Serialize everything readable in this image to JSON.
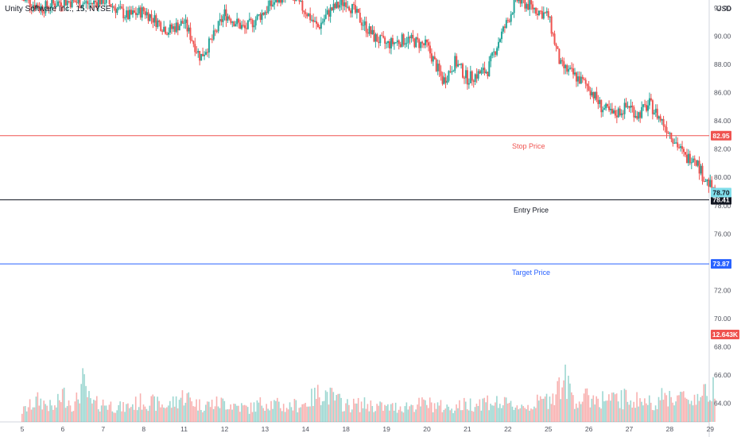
{
  "header": {
    "title": "Unity Software Inc., 15, NYSE",
    "currency": "USD"
  },
  "colors": {
    "up": "#26a69a",
    "down": "#ef5350",
    "stop": "#ef5350",
    "entry": "#131722",
    "target": "#2962ff",
    "last": "#80deea",
    "volume_tag": "#ef5350"
  },
  "chart_data": {
    "type": "candlestick",
    "y_axis": {
      "ticks": [
        92,
        90,
        88,
        86,
        84,
        82,
        80,
        78,
        76,
        74,
        72,
        70,
        68,
        66,
        64
      ],
      "tick_labels": [
        "92.00",
        "90.00",
        "88.00",
        "86.00",
        "84.00",
        "82.00",
        "80.00",
        "78.00",
        "76.00",
        "74.00",
        "72.00",
        "70.00",
        "68.00",
        "66.00",
        "64.00"
      ],
      "range": [
        62.8,
        93.3
      ]
    },
    "x_axis": {
      "labels": [
        "5",
        "6",
        "7",
        "8",
        "11",
        "12",
        "13",
        "14",
        "18",
        "19",
        "20",
        "21",
        "22",
        "25",
        "26",
        "27",
        "28",
        "29"
      ]
    },
    "levels": [
      {
        "name": "stop",
        "price": 82.95,
        "tag": "82.95",
        "label": "Stop Price"
      },
      {
        "name": "entry",
        "price": 78.41,
        "tag": "78.41",
        "label": "Entry Price"
      },
      {
        "name": "target",
        "price": 73.87,
        "tag": "73.87",
        "label": "Target Price"
      }
    ],
    "last_price": {
      "price": 78.7,
      "tag": "78.70"
    },
    "volume_tag": {
      "text": "12.643K"
    },
    "price_path": [
      [
        0,
        92.6
      ],
      [
        0.5,
        92.0
      ],
      [
        1,
        92.5
      ],
      [
        1.7,
        92.3
      ],
      [
        2,
        92.6
      ],
      [
        2.6,
        91.4
      ],
      [
        3,
        91.8
      ],
      [
        3.6,
        90.4
      ],
      [
        4,
        91.0
      ],
      [
        4.4,
        88.5
      ],
      [
        4.7,
        89.8
      ],
      [
        5,
        91.6
      ],
      [
        5.5,
        90.5
      ],
      [
        6,
        91.8
      ],
      [
        6.5,
        93.1
      ],
      [
        7,
        91.8
      ],
      [
        7.3,
        90.6
      ],
      [
        7.6,
        91.8
      ],
      [
        8,
        92.5
      ],
      [
        8.4,
        91.0
      ],
      [
        8.7,
        89.9
      ],
      [
        9,
        89.4
      ],
      [
        9.5,
        89.8
      ],
      [
        10,
        89.3
      ],
      [
        10.4,
        86.8
      ],
      [
        10.7,
        88.2
      ],
      [
        11,
        87.0
      ],
      [
        11.5,
        87.6
      ],
      [
        11.8,
        89.9
      ],
      [
        12,
        91.1
      ],
      [
        12.2,
        92.6
      ],
      [
        12.5,
        92.2
      ],
      [
        13,
        91.4
      ],
      [
        13.3,
        87.9
      ],
      [
        13.6,
        87.3
      ],
      [
        14,
        86.4
      ],
      [
        14.3,
        85.0
      ],
      [
        14.6,
        84.4
      ],
      [
        15,
        85.1
      ],
      [
        15.2,
        84.4
      ],
      [
        15.5,
        85.2
      ],
      [
        16,
        83.2
      ],
      [
        16.4,
        81.3
      ],
      [
        16.6,
        81.6
      ],
      [
        16.8,
        80.2
      ],
      [
        17,
        79.4
      ],
      [
        17.1,
        78.7
      ]
    ],
    "volume_path": [
      [
        0,
        1.2
      ],
      [
        0.4,
        2.5
      ],
      [
        0.8,
        1.5
      ],
      [
        1,
        3.2
      ],
      [
        1.3,
        1.8
      ],
      [
        1.5,
        4.5
      ],
      [
        1.7,
        2.0
      ],
      [
        2,
        2.1
      ],
      [
        2.5,
        1.6
      ],
      [
        3,
        2.4
      ],
      [
        3.6,
        1.8
      ],
      [
        4,
        3.0
      ],
      [
        4.4,
        1.9
      ],
      [
        5,
        2.2
      ],
      [
        5.6,
        1.5
      ],
      [
        6,
        2.3
      ],
      [
        6.5,
        1.7
      ],
      [
        7,
        2.1
      ],
      [
        7.4,
        3.5
      ],
      [
        8,
        1.9
      ],
      [
        8.5,
        2.0
      ],
      [
        9,
        1.6
      ],
      [
        9.5,
        1.8
      ],
      [
        10,
        2.1
      ],
      [
        10.5,
        1.6
      ],
      [
        11,
        2.0
      ],
      [
        11.5,
        2.4
      ],
      [
        12,
        1.9
      ],
      [
        12.5,
        1.8
      ],
      [
        13,
        2.6
      ],
      [
        13.4,
        4.8
      ],
      [
        13.7,
        2.3
      ],
      [
        14,
        2.8
      ],
      [
        14.6,
        2.5
      ],
      [
        15,
        2.7
      ],
      [
        15.5,
        2.2
      ],
      [
        16,
        3.0
      ],
      [
        16.5,
        2.6
      ],
      [
        17,
        3.4
      ],
      [
        17.1,
        4.6
      ]
    ]
  }
}
